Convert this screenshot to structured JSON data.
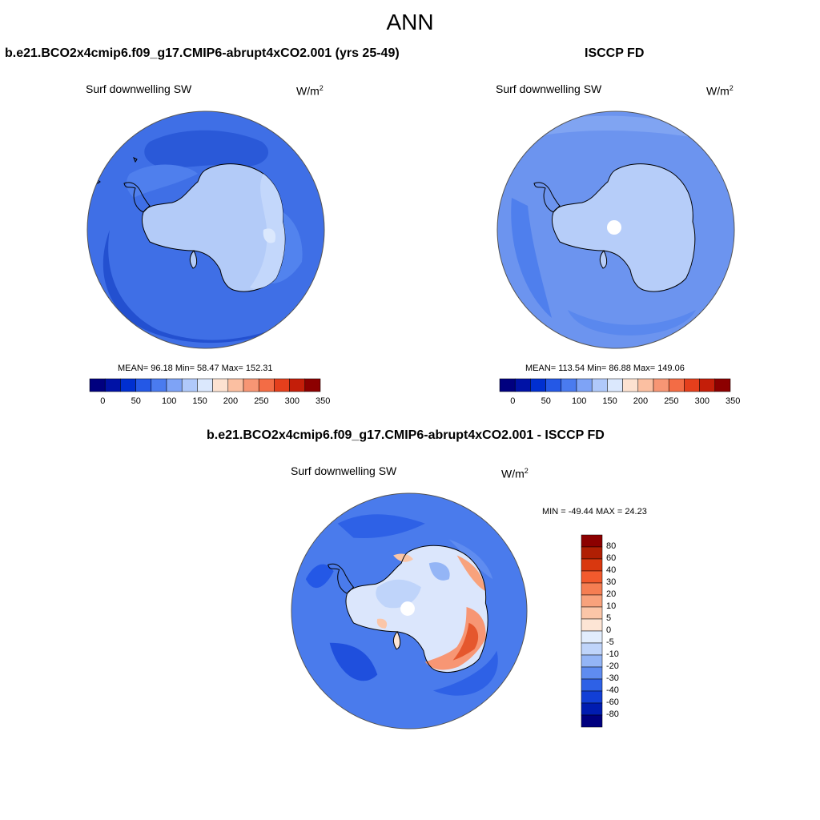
{
  "title": "ANN",
  "panels": [
    {
      "title": "b.e21.BCO2x4cmip6.f09_g17.CMIP6-abrupt4xCO2.001 (yrs 25-49)",
      "variable": "Surf downwelling SW",
      "units_base": "W/m",
      "units_exp": "2",
      "stats": "MEAN=  96.18  Min=  58.47  Max= 152.31",
      "colorbar_ticks": [
        "0",
        "50",
        "100",
        "150",
        "200",
        "250",
        "300",
        "350"
      ]
    },
    {
      "title": "ISCCP FD",
      "variable": "Surf downwelling SW",
      "units_base": "W/m",
      "units_exp": "2",
      "stats": "MEAN= 113.54  Min=  86.88  Max= 149.06",
      "colorbar_ticks": [
        "0",
        "50",
        "100",
        "150",
        "200",
        "250",
        "300",
        "350"
      ]
    },
    {
      "title": "b.e21.BCO2x4cmip6.f09_g17.CMIP6-abrupt4xCO2.001 - ISCCP FD",
      "variable": "Surf downwelling SW",
      "units_base": "W/m",
      "units_exp": "2",
      "stats": "MIN = -49.44 MAX =  24.23",
      "colorbar_ticks": [
        "80",
        "60",
        "40",
        "30",
        "20",
        "10",
        "5",
        "0",
        "-5",
        "-10",
        "-20",
        "-30",
        "-40",
        "-60",
        "-80"
      ]
    }
  ],
  "colors": {
    "abs_scale": [
      "#00007f",
      "#0012a6",
      "#002fd0",
      "#2458e6",
      "#4a7bef",
      "#7ea3f6",
      "#b0c9fa",
      "#dbe8fd",
      "#fde2d1",
      "#fbbfa1",
      "#f79674",
      "#f36c45",
      "#e53f1c",
      "#c41e09",
      "#8c0000"
    ],
    "diff_scale": [
      "#8c0000",
      "#b01f04",
      "#d9380f",
      "#f25a2d",
      "#f57e52",
      "#f8a27c",
      "#fbc6a8",
      "#fde5d5",
      "#e2edfd",
      "#bfd4fa",
      "#94b5f6",
      "#5f8cf0",
      "#2e61e6",
      "#123fd6",
      "#001cb0",
      "#00007f"
    ],
    "ocean_model": "#3f6fe6",
    "ocean_obs": "#6c94ef",
    "ocean_diff": "#4a7bec",
    "antarctica_model": "#b3cbf8",
    "antarctica_obs": "#b6cdf9",
    "coast": "#000000"
  },
  "map_projection": "south-polar-stereographic"
}
